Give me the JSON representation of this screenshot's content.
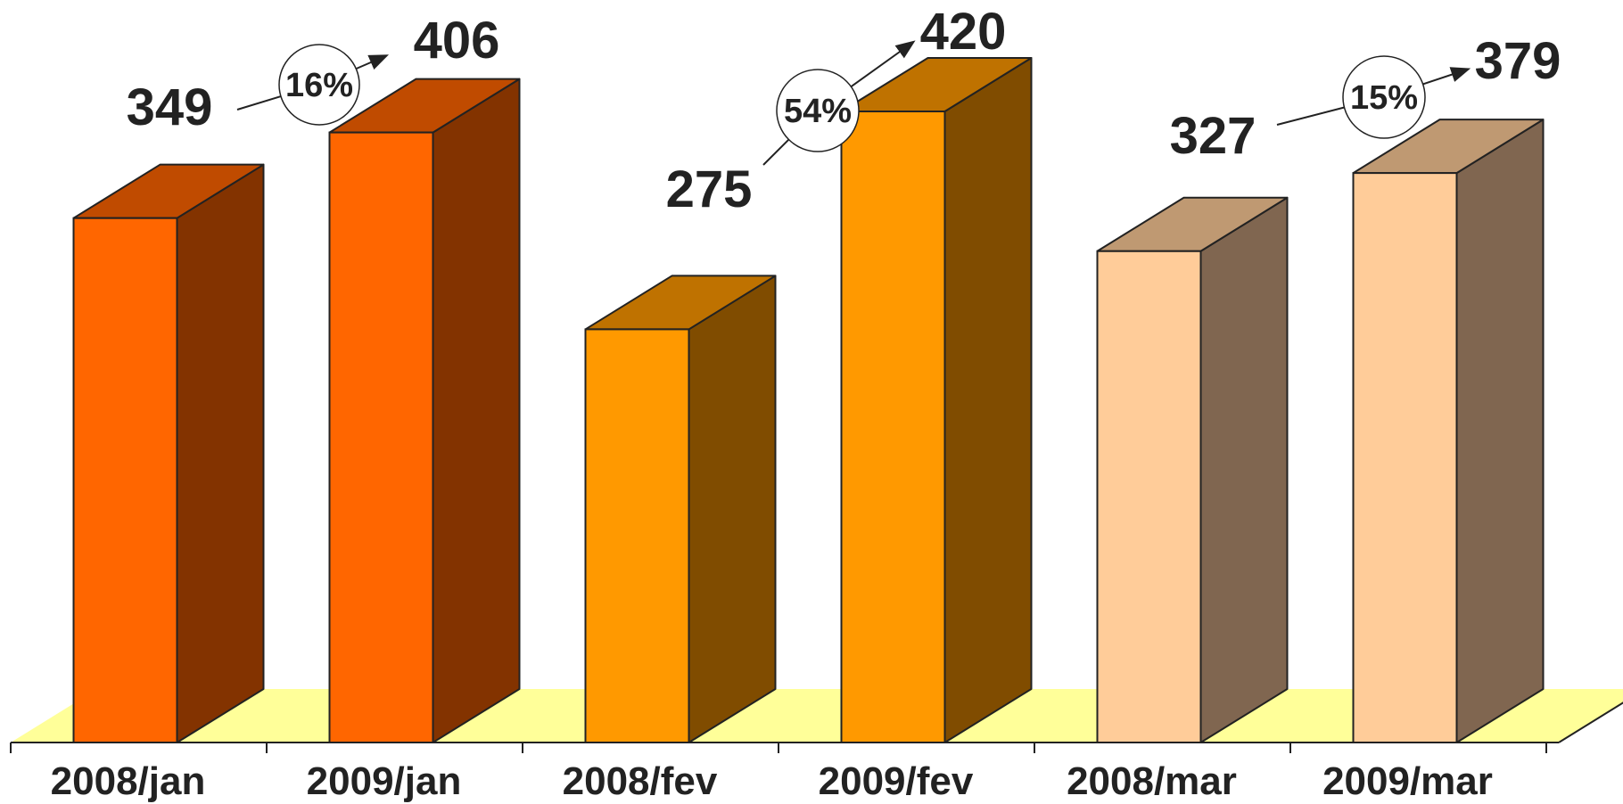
{
  "chart_data": {
    "type": "bar",
    "style": "3d-column",
    "categories": [
      "2008/jan",
      "2009/jan",
      "2008/fev",
      "2009/fev",
      "2008/mar",
      "2009/mar"
    ],
    "values": [
      349,
      406,
      275,
      420,
      327,
      379
    ],
    "value_labels": [
      "349",
      "406",
      "275",
      "420",
      "327",
      "379"
    ],
    "comparisons": [
      {
        "from": "2008/jan",
        "to": "2009/jan",
        "label": "16%"
      },
      {
        "from": "2008/fev",
        "to": "2009/fev",
        "label": "54%"
      },
      {
        "from": "2008/mar",
        "to": "2009/mar",
        "label": "15%"
      }
    ],
    "title": "",
    "xlabel": "",
    "ylabel": "",
    "ylim": [
      0,
      420
    ],
    "grid": false,
    "legend": "none",
    "colors": {
      "jan_front": "#ff6600",
      "jan_side": "#833300",
      "jan_top": "#c04b00",
      "fev_front": "#ff9900",
      "fev_side": "#804c00",
      "fev_top": "#bf7200",
      "mar_front": "#ffcc99",
      "mar_side": "#806650",
      "mar_top": "#bf9972",
      "floor": "#ffff99",
      "outline": "#222222",
      "text": "#222222"
    }
  }
}
